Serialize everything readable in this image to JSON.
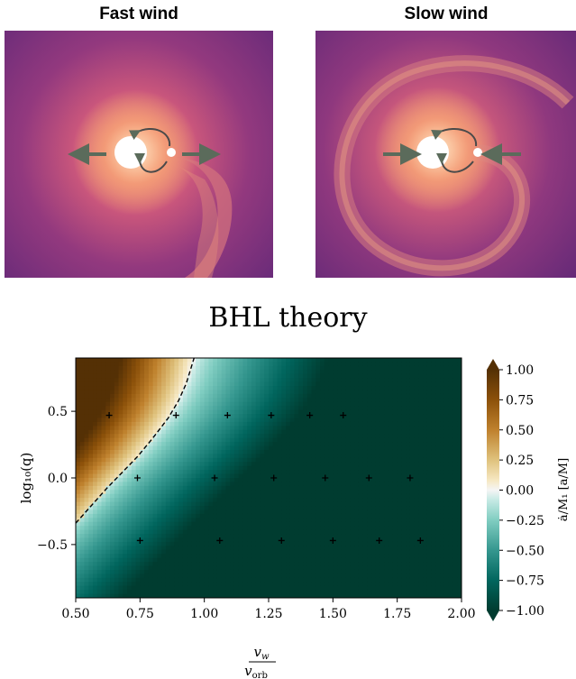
{
  "panels": [
    {
      "title": "Fast wind",
      "arrows": "outward"
    },
    {
      "title": "Slow wind",
      "arrows": "inward"
    }
  ],
  "colors": {
    "sim_bg_dark": "#5a2a7a",
    "sim_bg_mid": "#a8447e",
    "sim_glow": "#f2a07a",
    "arrow": "#5b6b5b",
    "brown": "#543005",
    "teal": "#003c30",
    "contour": "#000000"
  },
  "chart_data": {
    "type": "heatmap",
    "title": "BHL theory",
    "xlabel_num": "v",
    "xlabel_num_sub": "w",
    "xlabel_den": "v",
    "xlabel_den_sub": "orb",
    "ylabel": "log₁₀(q)",
    "xlim": [
      0.5,
      2.0
    ],
    "ylim": [
      -0.9,
      0.9
    ],
    "xticks": [
      0.5,
      0.75,
      1.0,
      1.25,
      1.5,
      1.75,
      2.0
    ],
    "xtick_labels": [
      "0.50",
      "0.75",
      "1.00",
      "1.25",
      "1.50",
      "1.75",
      "2.00"
    ],
    "yticks": [
      -0.5,
      0.0,
      0.5
    ],
    "ytick_labels": [
      "−0.5",
      "0.0",
      "0.5"
    ],
    "colorbar": {
      "label": "ȧ/M₁ [a/M]",
      "vmin": -1.0,
      "vmax": 1.0,
      "ticks": [
        1.0,
        0.75,
        0.5,
        0.25,
        0.0,
        -0.25,
        -0.5,
        -0.75,
        -1.0
      ],
      "tick_labels": [
        "1.00",
        "0.75",
        "0.50",
        "0.25",
        "0.00",
        "−0.25",
        "−0.50",
        "−0.75",
        "−1.00"
      ]
    },
    "zero_contour": [
      [
        0.5,
        -0.34
      ],
      [
        0.56,
        -0.21
      ],
      [
        0.62,
        -0.08
      ],
      [
        0.68,
        0.04
      ],
      [
        0.74,
        0.16
      ],
      [
        0.8,
        0.3
      ],
      [
        0.86,
        0.45
      ],
      [
        0.9,
        0.58
      ],
      [
        0.93,
        0.71
      ],
      [
        0.96,
        0.9
      ]
    ],
    "points": [
      {
        "x": 0.63,
        "y": 0.47
      },
      {
        "x": 0.89,
        "y": 0.47
      },
      {
        "x": 1.09,
        "y": 0.47
      },
      {
        "x": 1.26,
        "y": 0.47
      },
      {
        "x": 1.41,
        "y": 0.47
      },
      {
        "x": 1.54,
        "y": 0.47
      },
      {
        "x": 0.74,
        "y": 0.0
      },
      {
        "x": 1.04,
        "y": 0.0
      },
      {
        "x": 1.27,
        "y": 0.0
      },
      {
        "x": 1.47,
        "y": 0.0
      },
      {
        "x": 1.64,
        "y": 0.0
      },
      {
        "x": 1.8,
        "y": 0.0
      },
      {
        "x": 0.75,
        "y": -0.47
      },
      {
        "x": 1.06,
        "y": -0.47
      },
      {
        "x": 1.3,
        "y": -0.47
      },
      {
        "x": 1.5,
        "y": -0.47
      },
      {
        "x": 1.68,
        "y": -0.47
      },
      {
        "x": 1.84,
        "y": -0.47
      }
    ]
  }
}
